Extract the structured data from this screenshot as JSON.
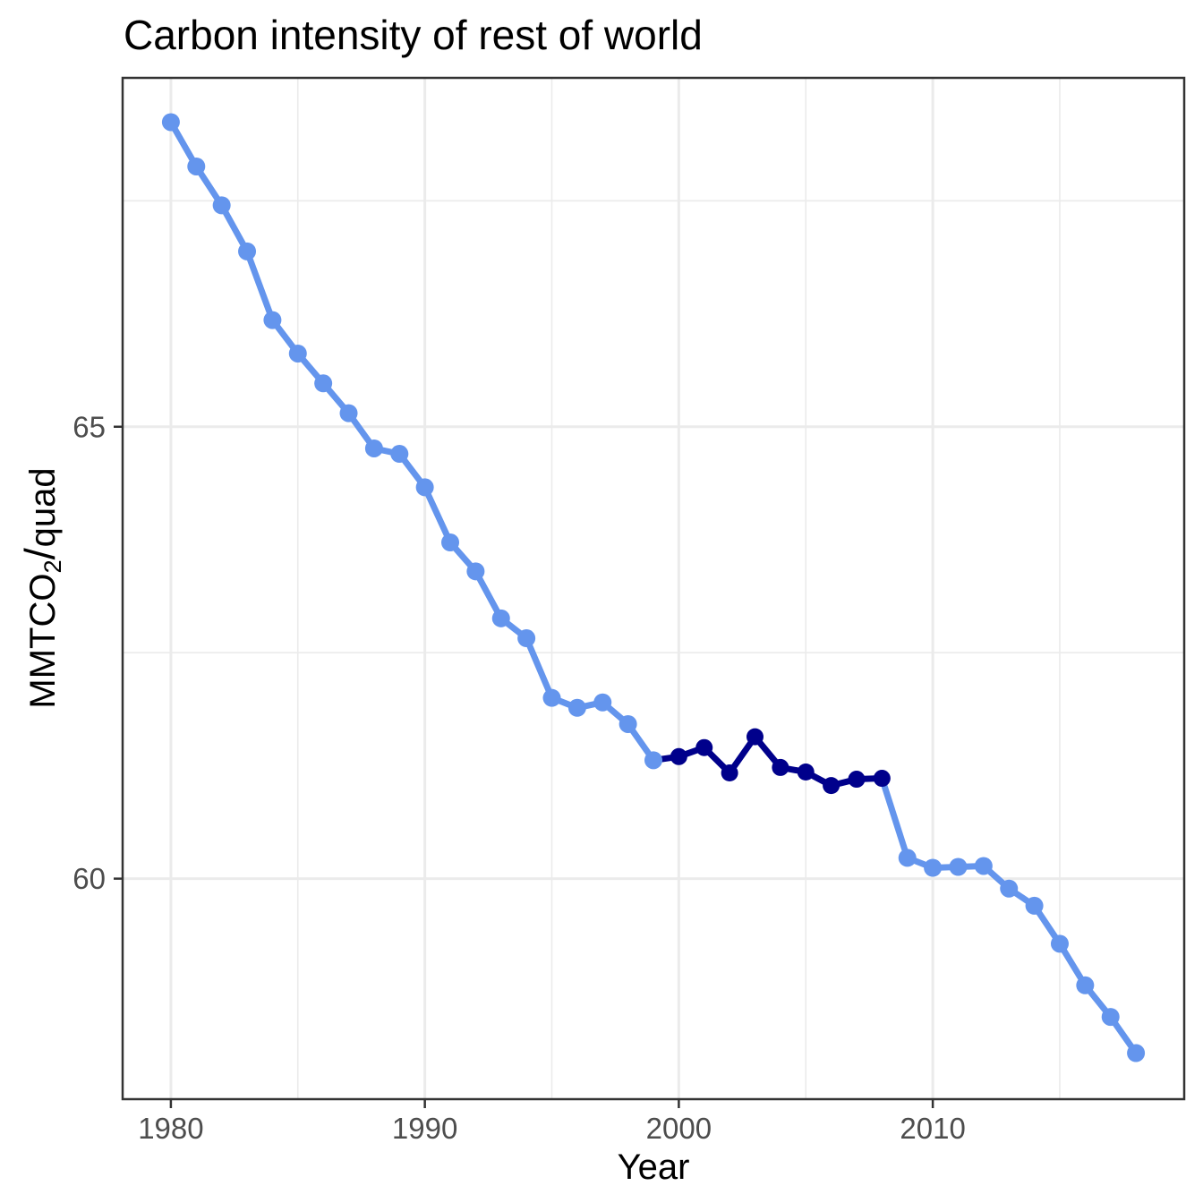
{
  "header": {
    "title": "Carbon intensity of rest of world"
  },
  "chart_data": {
    "type": "line",
    "title": "Carbon intensity of rest of world",
    "xlabel": "Year",
    "ylabel": "MMTCO2/quad",
    "ylabel_parts": {
      "base": "MMTCO",
      "sub": "2",
      "slash": "/",
      "unit": "quad"
    },
    "x": [
      1980,
      1981,
      1982,
      1983,
      1984,
      1985,
      1986,
      1987,
      1988,
      1989,
      1990,
      1991,
      1992,
      1993,
      1994,
      1995,
      1996,
      1997,
      1998,
      1999,
      2000,
      2001,
      2002,
      2003,
      2004,
      2005,
      2006,
      2007,
      2008,
      2009,
      2010,
      2011,
      2012,
      2013,
      2014,
      2015,
      2016,
      2017,
      2018
    ],
    "series": [
      {
        "name": "rest_of_world_carbon_intensity",
        "color": "#6495ED",
        "values": [
          68.37,
          67.88,
          67.45,
          66.94,
          66.18,
          65.81,
          65.48,
          65.15,
          64.76,
          64.7,
          64.33,
          63.72,
          63.4,
          62.88,
          62.66,
          62.0,
          61.89,
          61.95,
          61.71,
          61.31,
          61.35,
          61.45,
          61.17,
          61.57,
          61.23,
          61.18,
          61.03,
          61.1,
          61.11,
          60.23,
          60.12,
          60.13,
          60.14,
          59.89,
          59.7,
          59.28,
          58.82,
          58.47,
          58.07
        ]
      }
    ],
    "highlight": {
      "name": "highlighted_period",
      "start_year": 2000,
      "end_year": 2008,
      "color": "#00008B"
    },
    "axes": {
      "x_ticks": [
        1980,
        1990,
        2000,
        2010
      ],
      "x_minor": [
        1985,
        1995,
        2005,
        2015
      ],
      "y_ticks": [
        60,
        65
      ],
      "y_minor": [
        57.5,
        62.5,
        67.5
      ],
      "xlim": [
        1978.1,
        2019.9
      ],
      "ylim": [
        57.56,
        68.86
      ],
      "grid": true,
      "legend": "none"
    },
    "style": {
      "grid_color": "#EBEBEB",
      "border_color": "#333333",
      "tick_color": "#333333",
      "tick_label_color": "#4D4D4D",
      "background": "#FFFFFF"
    }
  }
}
